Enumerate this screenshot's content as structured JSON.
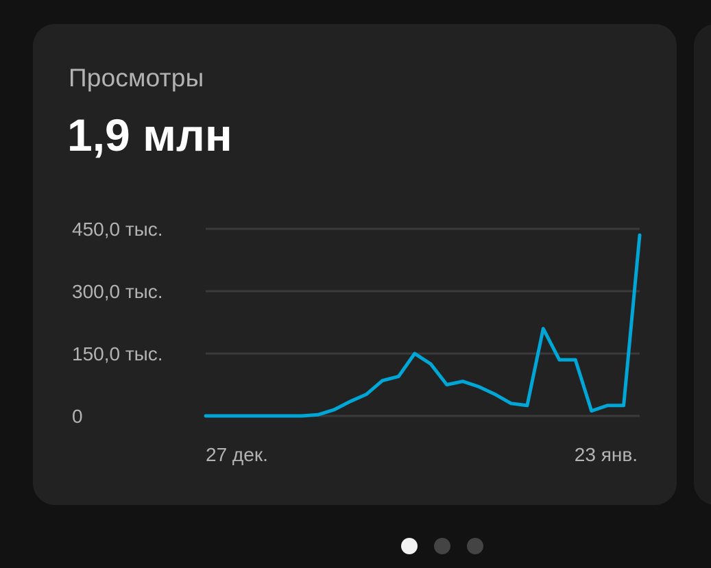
{
  "card": {
    "title": "Просмотры",
    "value": "1,9 млн"
  },
  "chart_data": {
    "type": "line",
    "title": "Просмотры",
    "y_ticks": [
      {
        "value": 0,
        "label": "0"
      },
      {
        "value": 150000,
        "label": "150,0 тыс."
      },
      {
        "value": 300000,
        "label": "300,0 тыс."
      },
      {
        "value": 450000,
        "label": "450,0 тыс."
      }
    ],
    "x_labels": [
      "27 дек.",
      "23 янв."
    ],
    "x": [
      "2023-12-27",
      "2023-12-28",
      "2023-12-29",
      "2023-12-30",
      "2023-12-31",
      "2024-01-01",
      "2024-01-02",
      "2024-01-03",
      "2024-01-04",
      "2024-01-05",
      "2024-01-06",
      "2024-01-07",
      "2024-01-08",
      "2024-01-09",
      "2024-01-10",
      "2024-01-11",
      "2024-01-12",
      "2024-01-13",
      "2024-01-14",
      "2024-01-15",
      "2024-01-16",
      "2024-01-17",
      "2024-01-18",
      "2024-01-19",
      "2024-01-20",
      "2024-01-21",
      "2024-01-22",
      "2024-01-23"
    ],
    "values": [
      0,
      0,
      0,
      0,
      0,
      0,
      0,
      3000,
      15000,
      35000,
      52000,
      85000,
      95000,
      150000,
      125000,
      75000,
      83000,
      70000,
      52000,
      30000,
      25000,
      210000,
      135000,
      135000,
      12000,
      25000,
      25000,
      435000
    ],
    "ylim": [
      0,
      450000
    ],
    "grid": true,
    "line_color": "#00a7d6",
    "grid_color": "#3a3a3a"
  },
  "pagination": {
    "count": 3,
    "active": 0
  }
}
